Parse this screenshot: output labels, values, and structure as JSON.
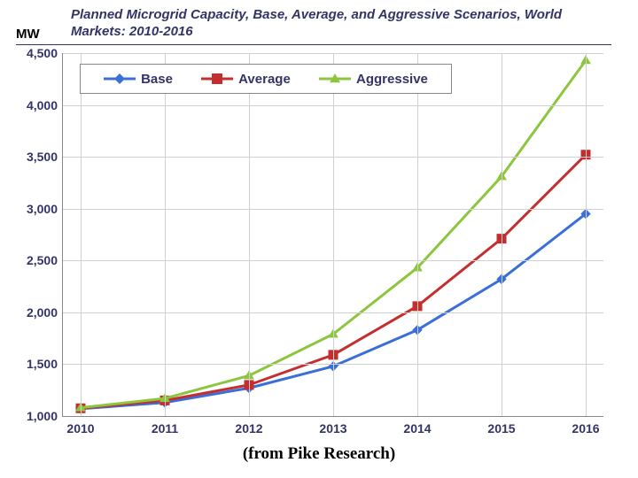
{
  "title": "Planned Microgrid Capacity, Base, Average, and Aggressive Scenarios, World Markets: 2010-2016",
  "ylabel": "MW",
  "caption": "(from Pike Research)",
  "chart": {
    "type": "line",
    "categories": [
      "2010",
      "2011",
      "2012",
      "2013",
      "2014",
      "2015",
      "2016"
    ],
    "ylim": [
      1000,
      4500
    ],
    "ytick_step": 500,
    "yticks": [
      "1,000",
      "1,500",
      "2,000",
      "2,500",
      "3,000",
      "3,500",
      "4,000",
      "4,500"
    ],
    "grid_color": "#d0d0d0",
    "axis_color": "#888888",
    "background_color": "#ffffff",
    "label_color": "#333366",
    "title_fontsize": 15,
    "tick_fontsize": 14,
    "line_width": 3,
    "marker_size": 10,
    "series": [
      {
        "name": "Base",
        "color": "#3a6fd8",
        "marker": "diamond",
        "values": [
          1070,
          1130,
          1270,
          1480,
          1830,
          2320,
          2950
        ]
      },
      {
        "name": "Average",
        "color": "#c52e2e",
        "marker": "square",
        "values": [
          1075,
          1150,
          1300,
          1590,
          2060,
          2710,
          3520
        ]
      },
      {
        "name": "Aggressive",
        "color": "#8cc63f",
        "marker": "triangle",
        "values": [
          1080,
          1170,
          1390,
          1790,
          2430,
          3310,
          4430
        ]
      }
    ]
  }
}
